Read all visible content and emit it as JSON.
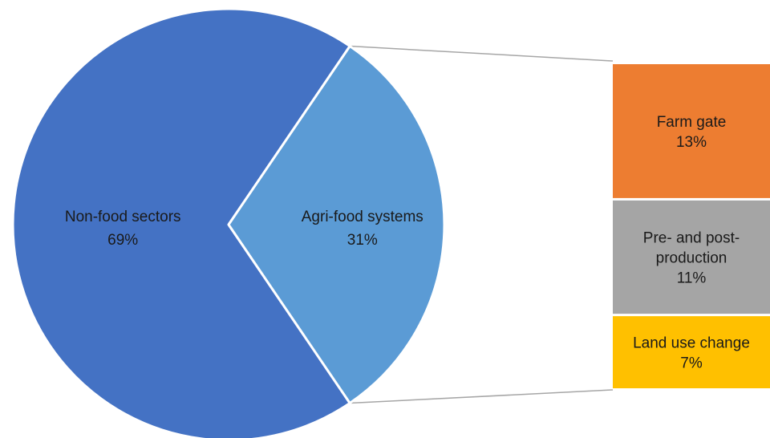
{
  "chart_data": [
    {
      "type": "pie",
      "slices": [
        {
          "label": "Non-food sectors",
          "value_label": "69%",
          "value": 69,
          "color": "#4472c4"
        },
        {
          "label": "Agri-food systems",
          "value_label": "31%",
          "value": 31,
          "color": "#5b9bd5"
        }
      ]
    },
    {
      "type": "bar",
      "stacked": true,
      "parent_slice": "Agri-food systems",
      "segments": [
        {
          "label_lines": [
            "Farm gate"
          ],
          "value_label": "13%",
          "value": 13,
          "color": "#ed7d31"
        },
        {
          "label_lines": [
            "Pre- and post-",
            "production"
          ],
          "value_label": "11%",
          "value": 11,
          "color": "#a5a5a5"
        },
        {
          "label_lines": [
            "Land use change"
          ],
          "value_label": "7%",
          "value": 7,
          "color": "#ffc000"
        }
      ]
    }
  ]
}
